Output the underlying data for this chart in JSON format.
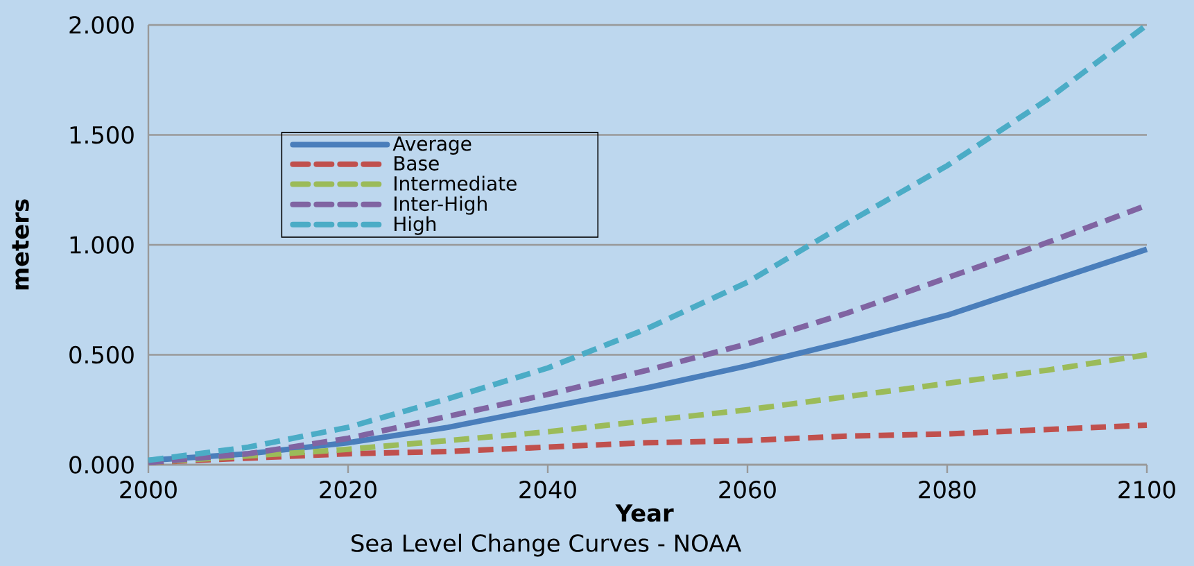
{
  "chart_data": {
    "type": "line",
    "xlabel": "Year",
    "ylabel": "meters",
    "annotations": [
      "Sea Level Change Curves - NOAA"
    ],
    "x": [
      2000,
      2010,
      2020,
      2030,
      2040,
      2050,
      2060,
      2070,
      2080,
      2090,
      2100
    ],
    "series": [
      {
        "name": "Average",
        "color": "#4a7ebb",
        "line_style": "solid",
        "values": [
          0.02,
          0.05,
          0.1,
          0.17,
          0.26,
          0.35,
          0.45,
          0.56,
          0.68,
          0.83,
          0.98
        ]
      },
      {
        "name": "Base",
        "color": "#c0504d",
        "line_style": "dashed",
        "values": [
          0.01,
          0.03,
          0.05,
          0.06,
          0.08,
          0.1,
          0.11,
          0.13,
          0.14,
          0.16,
          0.18
        ]
      },
      {
        "name": "Intermediate",
        "color": "#9bbb59",
        "line_style": "dashed",
        "values": [
          0.01,
          0.04,
          0.07,
          0.11,
          0.15,
          0.2,
          0.25,
          0.31,
          0.37,
          0.43,
          0.5
        ]
      },
      {
        "name": "Inter-High",
        "color": "#8064a2",
        "line_style": "dashed",
        "values": [
          0.01,
          0.05,
          0.12,
          0.22,
          0.32,
          0.43,
          0.55,
          0.69,
          0.85,
          1.01,
          1.18
        ]
      },
      {
        "name": "High",
        "color": "#4bacc6",
        "line_style": "dashed",
        "values": [
          0.02,
          0.08,
          0.17,
          0.3,
          0.44,
          0.62,
          0.83,
          1.1,
          1.36,
          1.66,
          2.0
        ]
      }
    ],
    "xlim": [
      2000,
      2100
    ],
    "xticks": [
      2000,
      2020,
      2040,
      2060,
      2080,
      2100
    ],
    "ylim": [
      0,
      2
    ],
    "yticks": [
      {
        "value": 0,
        "label": "0.000"
      },
      {
        "value": 0.5,
        "label": "0.500"
      },
      {
        "value": 1,
        "label": "1.000"
      },
      {
        "value": 1.5,
        "label": "1.500"
      },
      {
        "value": 2,
        "label": "2.000"
      }
    ],
    "grid": "y",
    "legend": "top left",
    "marker": "none"
  }
}
